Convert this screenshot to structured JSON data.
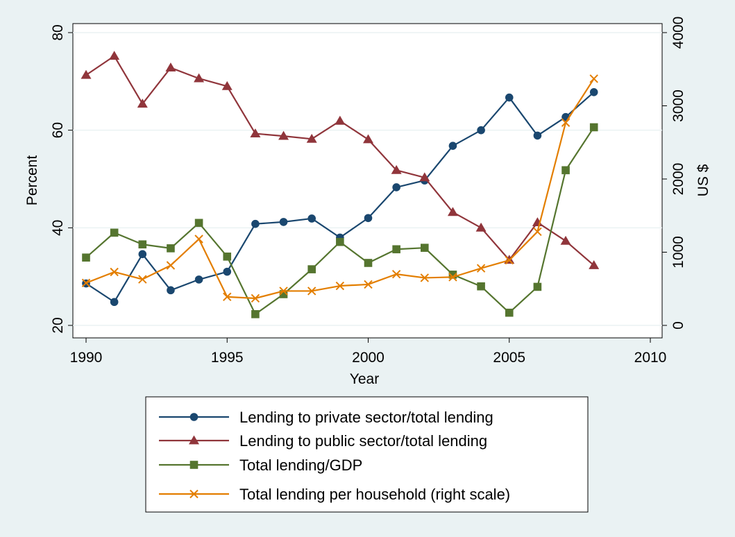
{
  "chart_data": {
    "type": "line",
    "xlabel": "Year",
    "ylabel_left": "Percent",
    "ylabel_right": "US $",
    "xlim": [
      1990,
      2010
    ],
    "ylim_left": [
      20,
      80
    ],
    "ylim_right": [
      0,
      4000
    ],
    "x_ticks": [
      1990,
      1995,
      2000,
      2005,
      2010
    ],
    "y_ticks_left": [
      20,
      40,
      60,
      80
    ],
    "y_ticks_right": [
      0,
      1000,
      2000,
      3000,
      4000
    ],
    "grid": "horizontal, left axis",
    "legend_position": "bottom",
    "x": [
      1990,
      1991,
      1992,
      1993,
      1994,
      1995,
      1996,
      1997,
      1998,
      1999,
      2000,
      2001,
      2002,
      2003,
      2004,
      2005,
      2006,
      2007,
      2008
    ],
    "series": [
      {
        "name": "Lending to private sector/total lending",
        "axis": "left",
        "marker": "circle",
        "color": "#1a476f",
        "values": [
          28.6,
          24.8,
          34.6,
          27.2,
          29.4,
          31.0,
          40.8,
          41.2,
          41.9,
          38.0,
          42.0,
          48.3,
          49.7,
          56.8,
          60.0,
          66.7,
          58.9,
          62.7,
          67.8
        ]
      },
      {
        "name": "Lending to public sector/total lending",
        "axis": "left",
        "marker": "triangle",
        "color": "#90353b",
        "values": [
          71.3,
          75.2,
          65.4,
          72.8,
          70.6,
          69.0,
          59.3,
          58.8,
          58.2,
          61.9,
          58.1,
          51.8,
          50.3,
          43.2,
          40.0,
          33.4,
          41.1,
          37.3,
          32.3
        ]
      },
      {
        "name": "Total lending/GDP",
        "axis": "left",
        "marker": "square",
        "color": "#55752f",
        "values": [
          33.9,
          39.0,
          36.6,
          35.8,
          41.0,
          34.1,
          22.3,
          26.4,
          31.5,
          37.1,
          32.8,
          35.6,
          35.9,
          30.4,
          28.0,
          22.6,
          27.9,
          51.8,
          60.6
        ]
      },
      {
        "name": "Total lending per household (right scale)",
        "axis": "right",
        "marker": "x",
        "color": "#e37e00",
        "values": [
          580,
          730,
          630,
          820,
          1180,
          390,
          370,
          470,
          470,
          540,
          560,
          700,
          650,
          660,
          780,
          890,
          1280,
          2770,
          3370
        ]
      }
    ]
  }
}
